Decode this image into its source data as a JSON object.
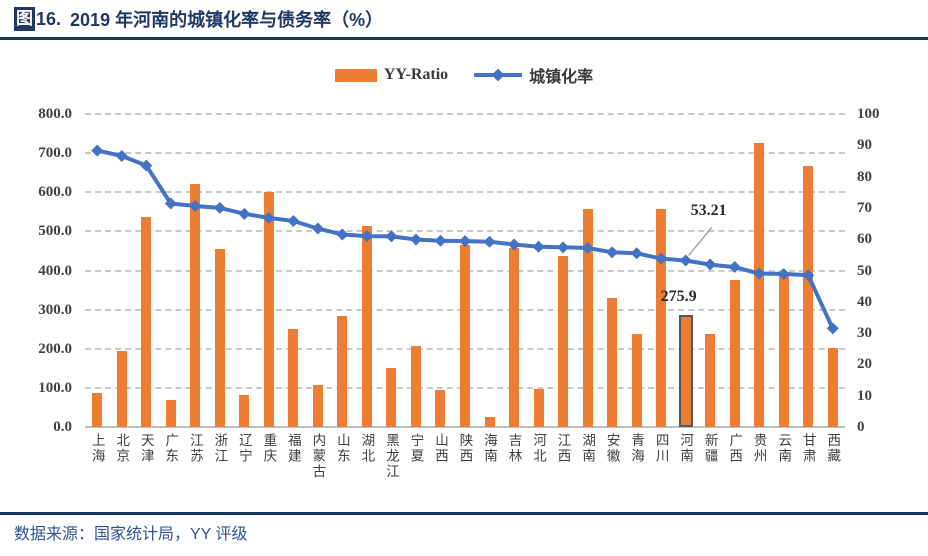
{
  "figure": {
    "label": "图",
    "number": "16.",
    "title": "2019 年河南的城镇化率与债务率（%）"
  },
  "legend": [
    {
      "label": "YY-Ratio",
      "type": "bar",
      "color": "#ED7D31"
    },
    {
      "label": "城镇化率",
      "type": "line",
      "color": "#4472C4"
    }
  ],
  "chart_data": {
    "type": "combo-bar-line",
    "categories": [
      "上海",
      "北京",
      "天津",
      "广东",
      "江苏",
      "浙江",
      "辽宁",
      "重庆",
      "福建",
      "内蒙古",
      "山东",
      "湖北",
      "黑龙江",
      "宁夏",
      "山西",
      "陕西",
      "海南",
      "吉林",
      "河北",
      "江西",
      "湖南",
      "安徽",
      "青海",
      "四川",
      "河南",
      "新疆",
      "广西",
      "贵州",
      "云南",
      "甘肃",
      "西藏"
    ],
    "series": [
      {
        "name": "YY-Ratio",
        "type": "bar",
        "axis": "left",
        "color": "#ED7D31",
        "values": [
          86,
          194,
          536,
          69,
          621,
          456,
          82,
          601,
          250,
          108,
          284,
          514,
          150,
          208,
          95,
          466,
          25,
          458,
          97,
          437,
          557,
          329,
          239,
          557,
          275.9,
          237,
          377,
          727,
          396,
          666,
          201
        ]
      },
      {
        "name": "城镇化率",
        "type": "line",
        "axis": "right",
        "color": "#4472C4",
        "values": [
          88.3,
          86.6,
          83.5,
          71.4,
          70.6,
          70.0,
          68.1,
          66.8,
          65.8,
          63.4,
          61.5,
          61.0,
          60.9,
          59.9,
          59.5,
          59.4,
          59.2,
          58.3,
          57.6,
          57.4,
          57.2,
          55.8,
          55.5,
          53.8,
          53.21,
          51.9,
          51.1,
          49.0,
          48.9,
          48.5,
          31.5
        ]
      }
    ],
    "left_axis": {
      "min": 0,
      "max": 800,
      "step": 100,
      "ticks": [
        "800.0",
        "700.0",
        "600.0",
        "500.0",
        "400.0",
        "300.0",
        "200.0",
        "100.0",
        "0.0"
      ]
    },
    "right_axis": {
      "min": 0,
      "max": 100,
      "step": 10,
      "ticks": [
        "100",
        "90",
        "80",
        "70",
        "60",
        "50",
        "40",
        "30",
        "20",
        "10",
        "0"
      ]
    },
    "highlight_category": "河南",
    "annotations": [
      {
        "text": "53.21",
        "target": "河南",
        "series": "城镇化率"
      },
      {
        "text": "275.9",
        "target": "河南",
        "series": "YY-Ratio"
      }
    ],
    "grid": "horizontal-dashed",
    "legend_position": "top-center"
  },
  "colors": {
    "bar": "#ED7D31",
    "line": "#4472C4",
    "highlight_border": "#50596B",
    "rule": "#17375E",
    "title_text": "#1F3864",
    "footer_text": "#2E5395"
  },
  "footer": {
    "source": "数据来源：国家统计局，YY 评级"
  }
}
